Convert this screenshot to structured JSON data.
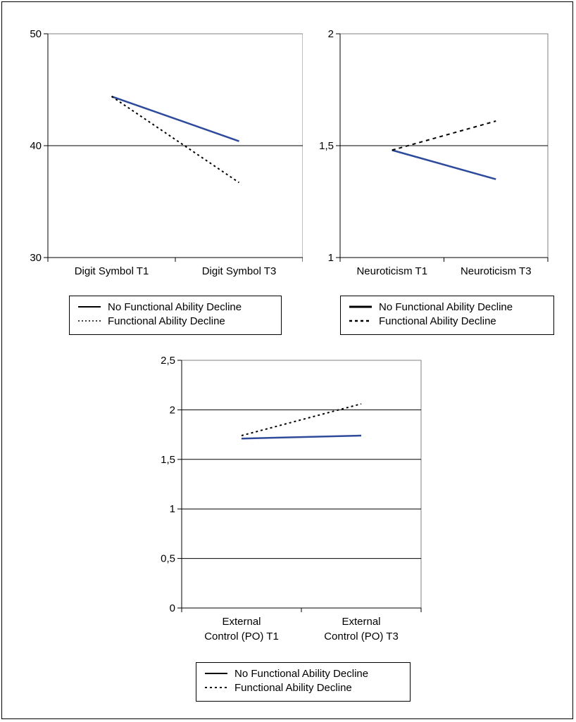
{
  "colors": {
    "no_decline": "#2e4a9a",
    "decline": "#000000",
    "axis": "#000000",
    "grid": "#000000"
  },
  "chart_data": [
    {
      "type": "line",
      "title": "",
      "xlabel": "",
      "ylabel": "",
      "categories": [
        "Digit Symbol T1",
        "Digit Symbol T3"
      ],
      "ylim": [
        30,
        50
      ],
      "yticks": [
        30,
        40,
        50
      ],
      "ytick_labels": [
        "30",
        "40",
        "50"
      ],
      "grid": "horizontal",
      "legend_position": "bottom",
      "series": [
        {
          "name": "No Functional Ability Decline",
          "values": [
            44.4,
            40.4
          ],
          "style": "solid"
        },
        {
          "name": "Functional Ability Decline",
          "values": [
            44.4,
            36.7
          ],
          "style": "dotted"
        }
      ]
    },
    {
      "type": "line",
      "title": "",
      "xlabel": "",
      "ylabel": "",
      "categories": [
        "Neuroticism T1",
        "Neuroticism T3"
      ],
      "ylim": [
        1,
        2
      ],
      "yticks": [
        1,
        1.5,
        2
      ],
      "ytick_labels": [
        "1",
        "1,5",
        "2"
      ],
      "grid": "horizontal",
      "legend_position": "bottom",
      "series": [
        {
          "name": "No Functional Ability Decline",
          "values": [
            1.48,
            1.35
          ],
          "style": "solid"
        },
        {
          "name": "Functional Ability Decline",
          "values": [
            1.48,
            1.61
          ],
          "style": "dashed"
        }
      ]
    },
    {
      "type": "line",
      "title": "",
      "xlabel": "",
      "ylabel": "",
      "categories": [
        [
          "External",
          "Control (PO) T1"
        ],
        [
          "External",
          "Control (PO) T3"
        ]
      ],
      "ylim": [
        0,
        2.5
      ],
      "yticks": [
        0,
        0.5,
        1,
        1.5,
        2,
        2.5
      ],
      "ytick_labels": [
        "0",
        "0,5",
        "1",
        "1,5",
        "2",
        "2,5"
      ],
      "grid": "horizontal",
      "legend_position": "bottom",
      "series": [
        {
          "name": "No Functional Ability Decline",
          "values": [
            1.71,
            1.74
          ],
          "style": "solid"
        },
        {
          "name": "Functional Ability Decline",
          "values": [
            1.74,
            2.06
          ],
          "style": "dotted"
        }
      ]
    }
  ]
}
